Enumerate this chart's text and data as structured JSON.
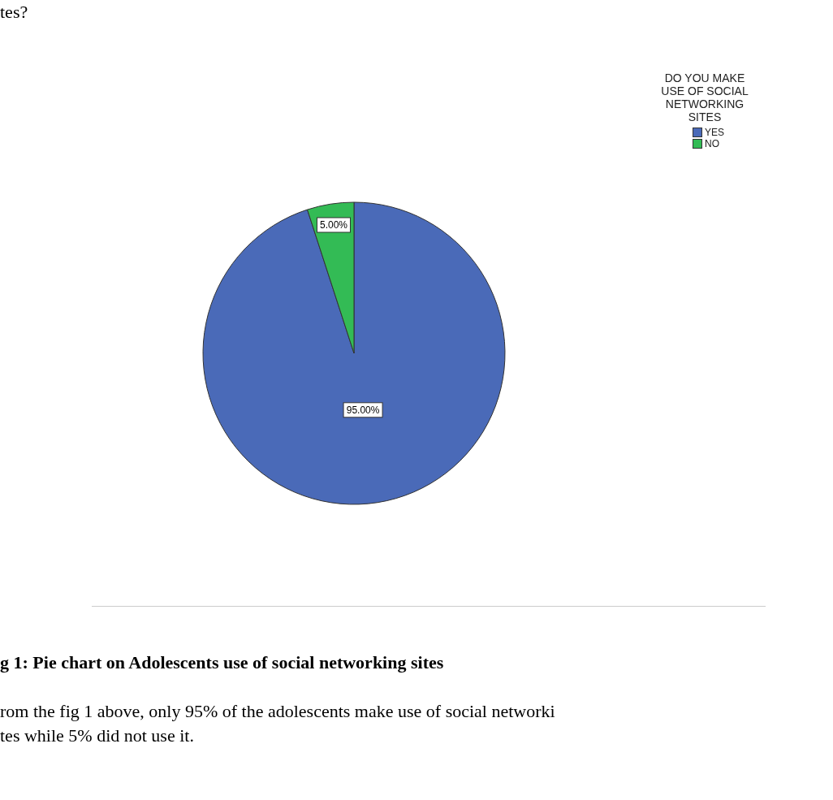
{
  "chart_data": {
    "type": "pie",
    "legend_title": "DO YOU MAKE USE OF SOCIAL NETWORKING SITES",
    "categories": [
      "YES",
      "NO"
    ],
    "values": [
      95,
      5
    ],
    "colors": [
      "#4a6ab8",
      "#33bb55"
    ],
    "value_labels": [
      "95.00%",
      "5.00%"
    ],
    "legend": "top right",
    "annotations": [
      "tes?",
      "g 1: Pie chart on Adolescents use of social networking sites",
      "rom the fig 1 above, only 95% of the adolescents make use of social networki",
      "tes while 5% did not use it."
    ]
  }
}
